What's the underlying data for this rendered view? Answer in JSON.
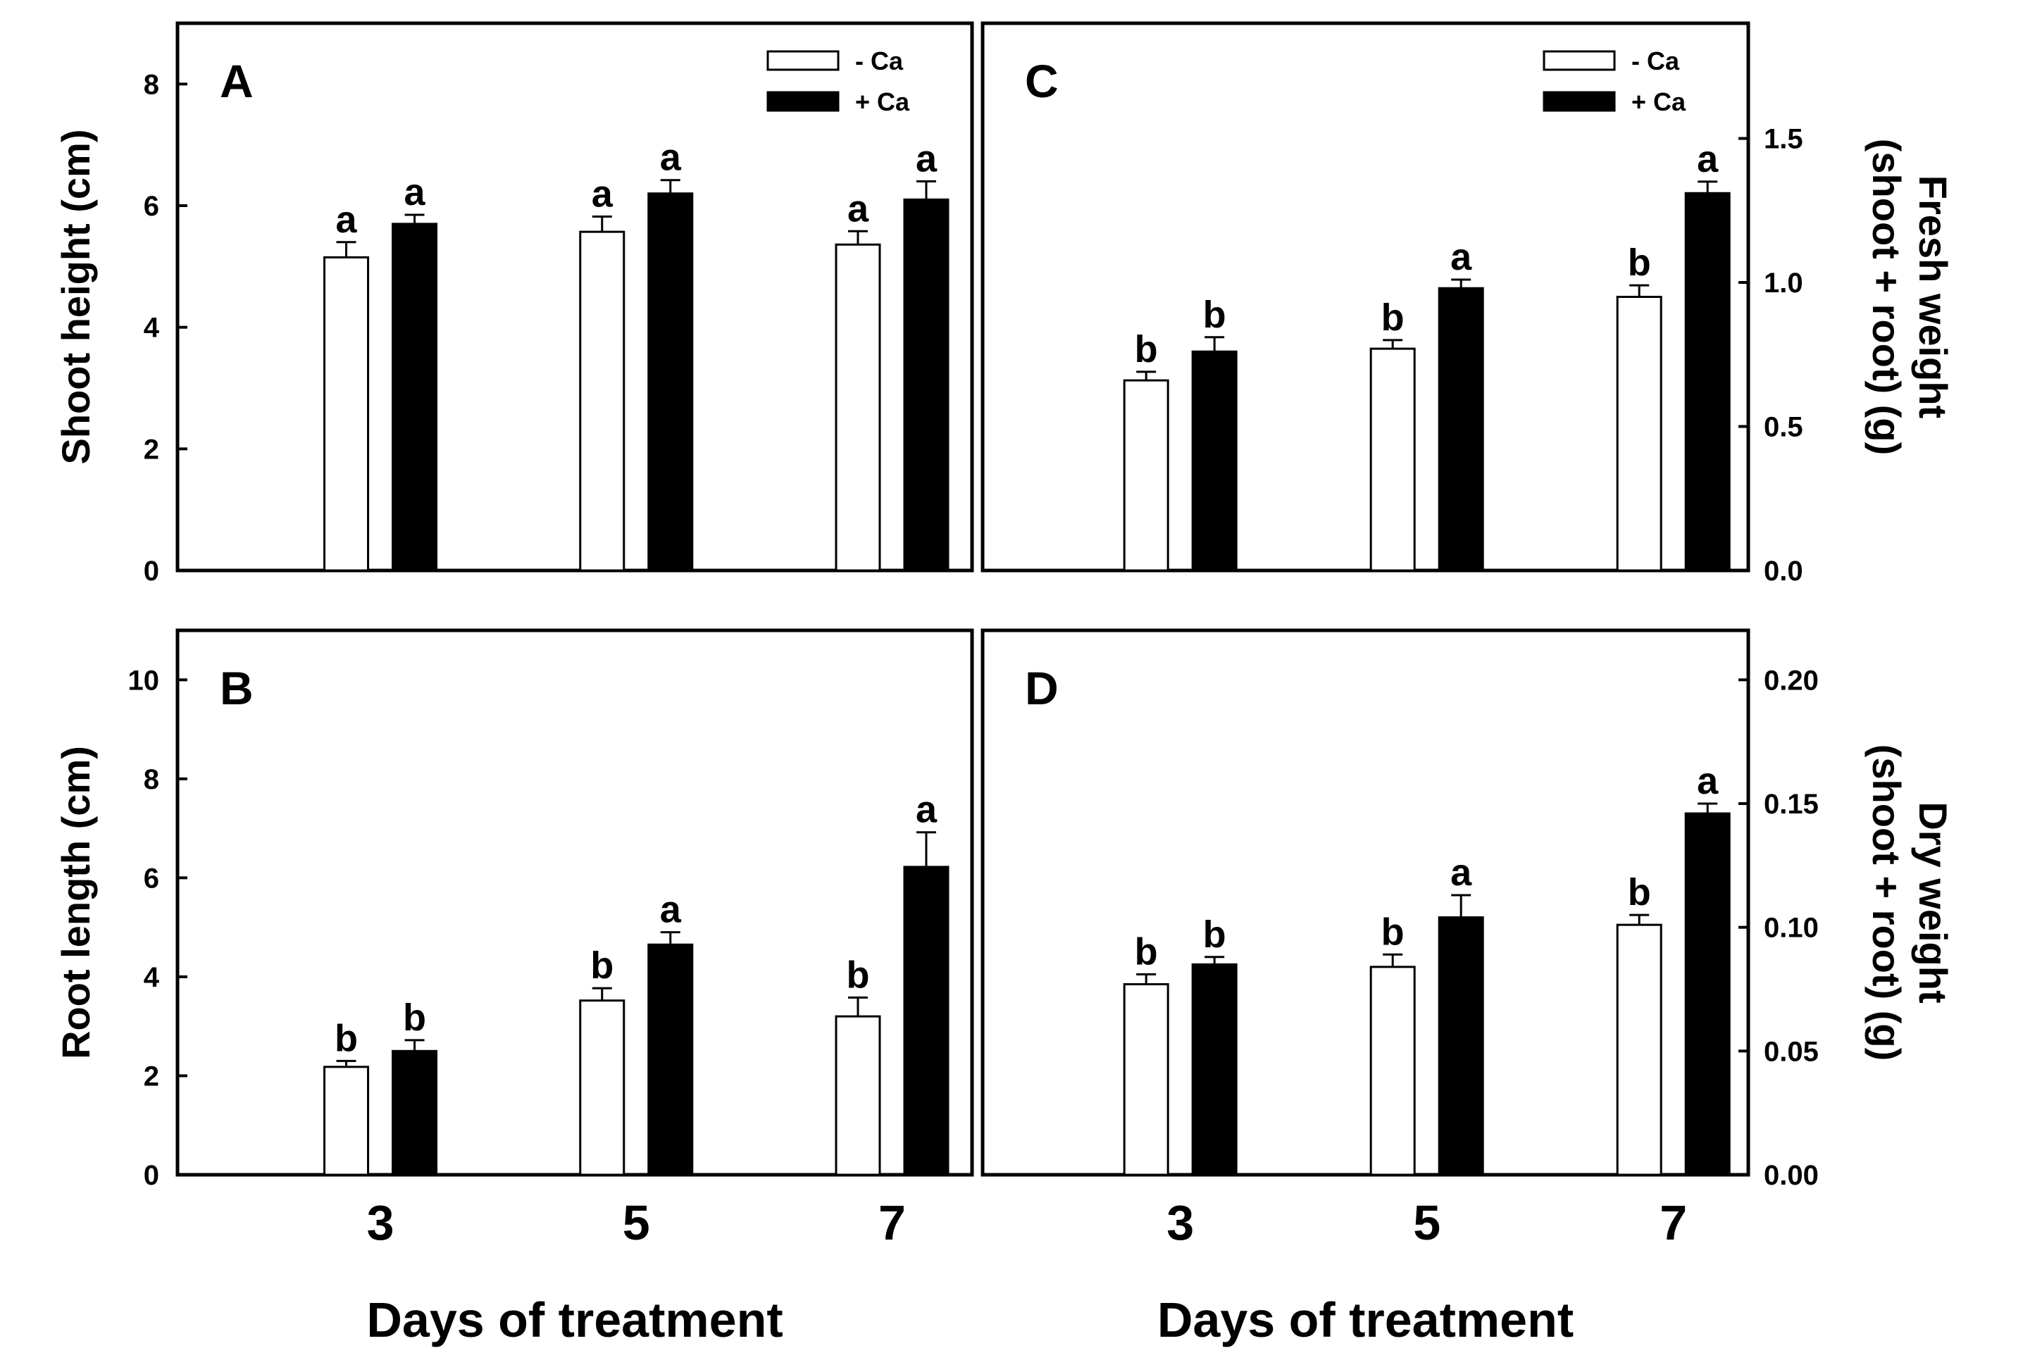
{
  "chart_data": [
    {
      "id": "A",
      "type": "bar",
      "panel_label": "A",
      "ylabel": "Shoot height (cm)",
      "ylabel_side": "left",
      "xlabel": "",
      "categories": [
        "3",
        "5",
        "7"
      ],
      "show_xticklabels": false,
      "ylim": [
        0,
        9
      ],
      "yticks": [
        0,
        2,
        4,
        6,
        8
      ],
      "ytick_labels": [
        "0",
        "2",
        "4",
        "6",
        "8"
      ],
      "series": [
        {
          "name": "- Ca",
          "fill": "#ffffff",
          "values": [
            5.15,
            5.57,
            5.36
          ],
          "errors": [
            0.25,
            0.25,
            0.22
          ],
          "letters": [
            "a",
            "a",
            "a"
          ]
        },
        {
          "name": "+ Ca",
          "fill": "#000000",
          "values": [
            5.7,
            6.2,
            6.1
          ],
          "errors": [
            0.15,
            0.22,
            0.3
          ],
          "letters": [
            "a",
            "a",
            "a"
          ]
        }
      ],
      "legend": [
        "- Ca",
        "+ Ca"
      ],
      "legend_position": "top-right"
    },
    {
      "id": "B",
      "type": "bar",
      "panel_label": "B",
      "ylabel": "Root length (cm)",
      "ylabel_side": "left",
      "xlabel": "Days of treatment",
      "categories": [
        "3",
        "5",
        "7"
      ],
      "show_xticklabels": true,
      "ylim": [
        0,
        11
      ],
      "yticks": [
        0,
        2,
        4,
        6,
        8,
        10
      ],
      "ytick_labels": [
        "0",
        "2",
        "4",
        "6",
        "8",
        "10"
      ],
      "series": [
        {
          "name": "- Ca",
          "fill": "#ffffff",
          "values": [
            2.18,
            3.52,
            3.2
          ],
          "errors": [
            0.12,
            0.25,
            0.38
          ],
          "letters": [
            "b",
            "b",
            "b"
          ]
        },
        {
          "name": "+ Ca",
          "fill": "#000000",
          "values": [
            2.5,
            4.65,
            6.22
          ],
          "errors": [
            0.22,
            0.25,
            0.7
          ],
          "letters": [
            "b",
            "a",
            "a"
          ]
        }
      ]
    },
    {
      "id": "C",
      "type": "bar",
      "panel_label": "C",
      "ylabel": "Fresh weight (shoot + root) (g)",
      "ylabel_lines": [
        "Fresh weight",
        "(shoot + root)  (g)"
      ],
      "ylabel_side": "right",
      "xlabel": "",
      "categories": [
        "3",
        "5",
        "7"
      ],
      "show_xticklabels": false,
      "ylim": [
        0,
        1.9
      ],
      "yticks": [
        0,
        0.5,
        1.0,
        1.5
      ],
      "ytick_labels": [
        "0.0",
        "0.5",
        "1.0",
        "1.5"
      ],
      "series": [
        {
          "name": "- Ca",
          "fill": "#ffffff",
          "values": [
            0.66,
            0.77,
            0.95
          ],
          "errors": [
            0.03,
            0.03,
            0.04
          ],
          "letters": [
            "b",
            "b",
            "b"
          ]
        },
        {
          "name": "+ Ca",
          "fill": "#000000",
          "values": [
            0.76,
            0.98,
            1.31
          ],
          "errors": [
            0.05,
            0.03,
            0.04
          ],
          "letters": [
            "b",
            "a",
            "a"
          ]
        }
      ],
      "legend": [
        "- Ca",
        "+ Ca"
      ],
      "legend_position": "top-right"
    },
    {
      "id": "D",
      "type": "bar",
      "panel_label": "D",
      "ylabel": "Dry weight (shoot + root) (g)",
      "ylabel_lines": [
        "Dry weight",
        "(shoot + root)  (g)"
      ],
      "ylabel_side": "right",
      "xlabel": "Days of treatment",
      "categories": [
        "3",
        "5",
        "7"
      ],
      "show_xticklabels": true,
      "ylim": [
        0,
        0.22
      ],
      "yticks": [
        0,
        0.05,
        0.1,
        0.15,
        0.2
      ],
      "ytick_labels": [
        "0.00",
        "0.05",
        "0.10",
        "0.15",
        "0.20"
      ],
      "series": [
        {
          "name": "- Ca",
          "fill": "#ffffff",
          "values": [
            0.077,
            0.084,
            0.101
          ],
          "errors": [
            0.004,
            0.005,
            0.004
          ],
          "letters": [
            "b",
            "b",
            "b"
          ]
        },
        {
          "name": "+ Ca",
          "fill": "#000000",
          "values": [
            0.085,
            0.104,
            0.146
          ],
          "errors": [
            0.003,
            0.009,
            0.004
          ],
          "letters": [
            "b",
            "a",
            "a"
          ]
        }
      ]
    }
  ]
}
